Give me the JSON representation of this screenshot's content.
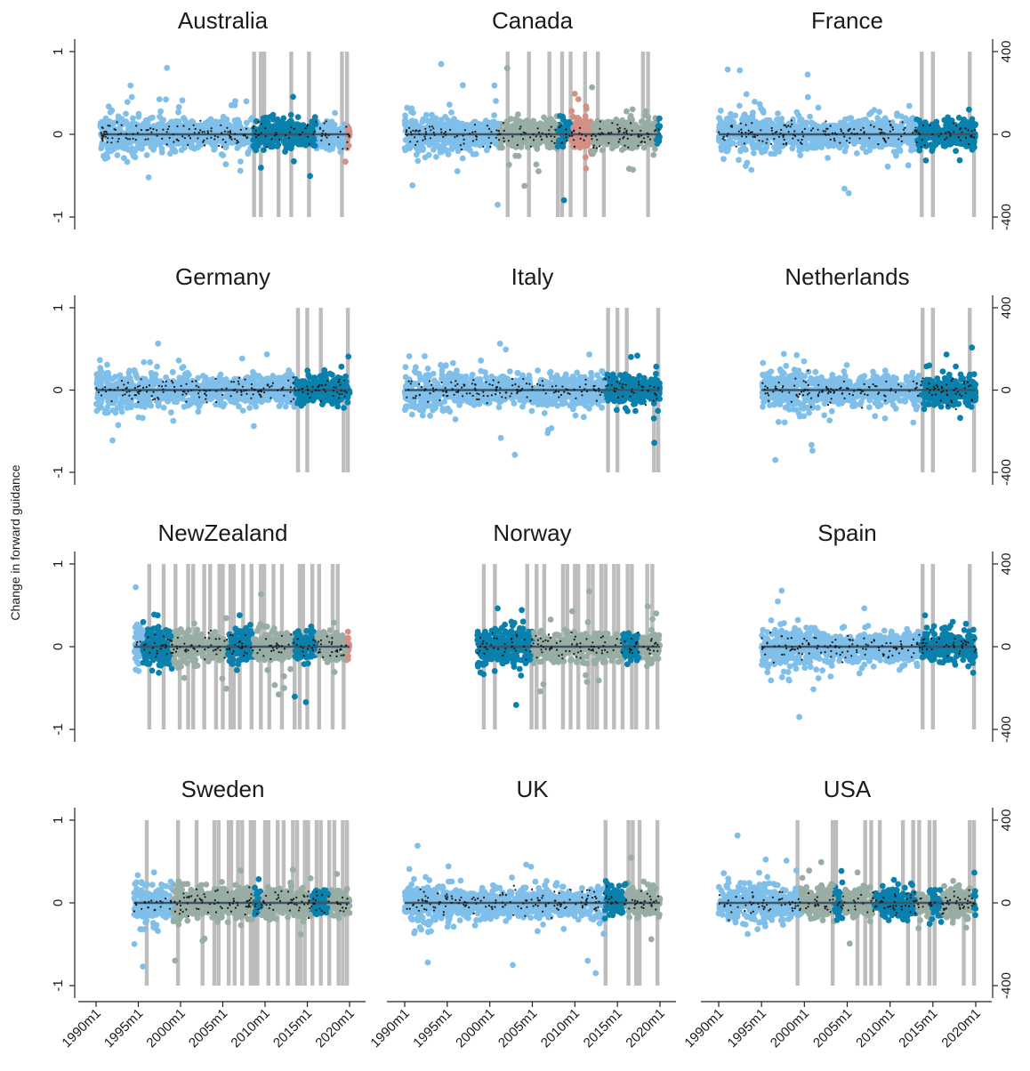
{
  "figure": {
    "ylabel": "Change in forward guidance",
    "left_ticks": [
      "1",
      "0",
      "-1"
    ],
    "right_ticks": [
      "400",
      "0",
      "-400"
    ],
    "x_ticks": [
      "1990m1",
      "1995m1",
      "2000m1",
      "2005m1",
      "2010m1",
      "2015m1",
      "2020m1"
    ]
  },
  "colors": {
    "light_blue": "#7fbfea",
    "dark_blue": "#0a81ad",
    "gray_green": "#98aea4",
    "salmon": "#d48f86",
    "shock_bars": "#bdbdbd",
    "zero_line": "#3d5564",
    "marker": "#1a1a1a"
  },
  "chart_data": [
    {
      "type": "scatter",
      "title": "Australia",
      "panel_row": 0,
      "panel_col": 0,
      "sample": [
        1990.5,
        2020.0
      ],
      "regimes": [
        {
          "from": 2008.5,
          "to": 2016.0,
          "color": "dark_blue"
        },
        {
          "from": 2019.5,
          "to": 2020.0,
          "color": "salmon"
        }
      ],
      "shock_dates": [
        2008.7,
        2009.1,
        2009.5,
        2009.9,
        2011.6,
        2013.1,
        2015.2,
        2015.8,
        2019.1,
        2019.7
      ],
      "ylim": [
        -1,
        1
      ],
      "right_ylim": [
        -400,
        400
      ]
    },
    {
      "type": "scatter",
      "title": "Canada",
      "panel_row": 0,
      "panel_col": 1,
      "sample": [
        1990.0,
        2020.0
      ],
      "regimes": [
        {
          "from": 2001.0,
          "to": 2008.0,
          "color": "gray_green"
        },
        {
          "from": 2008.0,
          "to": 2009.5,
          "color": "dark_blue"
        },
        {
          "from": 2009.5,
          "to": 2012.0,
          "color": "salmon"
        },
        {
          "from": 2012.0,
          "to": 2019.5,
          "color": "gray_green"
        },
        {
          "from": 2019.5,
          "to": 2020.0,
          "color": "dark_blue"
        }
      ],
      "shock_dates": [
        2002.1,
        2002.9,
        2004.6,
        2007.0,
        2008.0,
        2008.5,
        2009.5,
        2010.3,
        2011.2,
        2012.7,
        2013.4,
        2018.0,
        2018.6,
        2019.3
      ],
      "ylim": [
        -1,
        1
      ],
      "right_ylim": [
        -400,
        400
      ]
    },
    {
      "type": "scatter",
      "title": "France",
      "panel_row": 0,
      "panel_col": 2,
      "sample": [
        1990.0,
        2020.0
      ],
      "regimes": [
        {
          "from": 2013.0,
          "to": 2020.0,
          "color": "dark_blue"
        }
      ],
      "shock_dates": [
        2013.7,
        2014.4,
        2015.0,
        2019.3,
        2019.8
      ],
      "ylim": [
        -1,
        1
      ],
      "right_ylim": [
        -400,
        400
      ]
    },
    {
      "type": "scatter",
      "title": "Germany",
      "panel_row": 1,
      "panel_col": 0,
      "sample": [
        1990.0,
        2020.0
      ],
      "regimes": [
        {
          "from": 2013.5,
          "to": 2020.0,
          "color": "dark_blue"
        }
      ],
      "shock_dates": [
        2013.9,
        2014.5,
        2015.0,
        2016.6,
        2019.3,
        2019.8
      ],
      "ylim": [
        -1,
        1
      ],
      "right_ylim": [
        -400,
        400
      ]
    },
    {
      "type": "scatter",
      "title": "Italy",
      "panel_row": 1,
      "panel_col": 1,
      "sample": [
        1990.0,
        2020.0
      ],
      "regimes": [
        {
          "from": 2013.5,
          "to": 2020.0,
          "color": "dark_blue"
        }
      ],
      "shock_dates": [
        2013.9,
        2014.4,
        2015.0,
        2016.1,
        2019.3,
        2019.8
      ],
      "ylim": [
        -1,
        1
      ],
      "right_ylim": [
        -400,
        400
      ]
    },
    {
      "type": "scatter",
      "title": "Netherlands",
      "panel_row": 1,
      "panel_col": 2,
      "sample": [
        1995.0,
        2020.0
      ],
      "regimes": [
        {
          "from": 2013.5,
          "to": 2020.0,
          "color": "dark_blue"
        }
      ],
      "shock_dates": [
        2013.8,
        2014.4,
        2015.0,
        2019.3,
        2019.8
      ],
      "ylim": [
        -1,
        1
      ],
      "right_ylim": [
        -400,
        400
      ]
    },
    {
      "type": "scatter",
      "title": "NewZealand",
      "panel_row": 2,
      "panel_col": 0,
      "sample": [
        1994.5,
        2020.0
      ],
      "regimes": [
        {
          "from": 1995.5,
          "to": 1999.0,
          "color": "dark_blue"
        },
        {
          "from": 1999.0,
          "to": 2005.5,
          "color": "gray_green"
        },
        {
          "from": 2005.5,
          "to": 2008.5,
          "color": "dark_blue"
        },
        {
          "from": 2008.5,
          "to": 2013.5,
          "color": "gray_green"
        },
        {
          "from": 2013.5,
          "to": 2016.0,
          "color": "dark_blue"
        },
        {
          "from": 2016.0,
          "to": 2019.5,
          "color": "gray_green"
        },
        {
          "from": 2019.5,
          "to": 2020.0,
          "color": "salmon"
        }
      ],
      "shock_dates": [
        1996.3,
        1996.9,
        1998.0,
        1999.4,
        1999.9,
        2000.9,
        2001.5,
        2002.2,
        2002.8,
        2003.5,
        2004.2,
        2004.6,
        2005.0,
        2005.4,
        2005.9,
        2006.3,
        2007.0,
        2007.4,
        2008.4,
        2009.1,
        2009.5,
        2009.9,
        2010.5,
        2011.0,
        2012.0,
        2013.5,
        2014.1,
        2014.5,
        2015.0,
        2015.6,
        2016.4,
        2017.2,
        2018.0,
        2018.6,
        2019.3
      ],
      "ylim": [
        -1,
        1
      ],
      "right_ylim": [
        -400,
        400
      ]
    },
    {
      "type": "scatter",
      "title": "Norway",
      "panel_row": 2,
      "panel_col": 1,
      "sample": [
        1998.5,
        2020.0
      ],
      "regimes": [
        {
          "from": 1998.5,
          "to": 2001.0,
          "color": "dark_blue"
        },
        {
          "from": 2001.0,
          "to": 2005.0,
          "color": "dark_blue"
        },
        {
          "from": 2005.0,
          "to": 2015.5,
          "color": "gray_green"
        },
        {
          "from": 2015.5,
          "to": 2017.5,
          "color": "dark_blue"
        },
        {
          "from": 2017.5,
          "to": 2020.0,
          "color": "gray_green"
        }
      ],
      "shock_dates": [
        1999.3,
        1999.9,
        2000.6,
        2004.4,
        2004.9,
        2005.5,
        2006.4,
        2008.0,
        2008.6,
        2009.1,
        2009.5,
        2010.0,
        2010.4,
        2011.0,
        2011.6,
        2012.1,
        2012.6,
        2013.1,
        2013.6,
        2014.1,
        2014.6,
        2015.1,
        2015.6,
        2016.2,
        2016.7,
        2017.2,
        2018.5,
        2019.1,
        2019.7
      ],
      "ylim": [
        -1,
        1
      ],
      "right_ylim": [
        -400,
        400
      ]
    },
    {
      "type": "scatter",
      "title": "Spain",
      "panel_row": 2,
      "panel_col": 2,
      "sample": [
        1995.0,
        2020.0
      ],
      "regimes": [
        {
          "from": 2013.5,
          "to": 2020.0,
          "color": "dark_blue"
        }
      ],
      "shock_dates": [
        2013.8,
        2014.4,
        2015.0,
        2019.3,
        2019.8
      ],
      "ylim": [
        -1,
        1
      ],
      "right_ylim": [
        -400,
        400
      ]
    },
    {
      "type": "scatter",
      "title": "Sweden",
      "panel_row": 3,
      "panel_col": 0,
      "sample": [
        1994.5,
        2020.0
      ],
      "regimes": [
        {
          "from": 1999.0,
          "to": 2008.5,
          "color": "gray_green"
        },
        {
          "from": 2008.5,
          "to": 2009.5,
          "color": "dark_blue"
        },
        {
          "from": 2009.5,
          "to": 2015.5,
          "color": "gray_green"
        },
        {
          "from": 2015.5,
          "to": 2017.5,
          "color": "dark_blue"
        },
        {
          "from": 2017.5,
          "to": 2020.0,
          "color": "gray_green"
        }
      ],
      "shock_dates": [
        1996.0,
        1998.9,
        1999.7,
        2001.9,
        2002.6,
        2004.0,
        2004.5,
        2005.2,
        2005.7,
        2006.0,
        2006.4,
        2006.8,
        2007.3,
        2007.7,
        2008.3,
        2008.7,
        2009.1,
        2010.0,
        2010.4,
        2011.0,
        2011.5,
        2012.2,
        2012.7,
        2013.3,
        2013.8,
        2014.2,
        2014.7,
        2015.1,
        2015.6,
        2016.1,
        2016.6,
        2017.1,
        2017.6,
        2018.2,
        2018.7,
        2019.2,
        2019.7
      ],
      "ylim": [
        -1,
        1
      ],
      "right_ylim": [
        -400,
        400
      ]
    },
    {
      "type": "scatter",
      "title": "UK",
      "panel_row": 3,
      "panel_col": 1,
      "sample": [
        1990.0,
        2020.0
      ],
      "regimes": [
        {
          "from": 2013.5,
          "to": 2016.0,
          "color": "dark_blue"
        },
        {
          "from": 2016.0,
          "to": 2020.0,
          "color": "gray_green"
        }
      ],
      "shock_dates": [
        2013.6,
        2014.4,
        2016.3,
        2016.8,
        2017.2,
        2017.6,
        2019.7
      ],
      "ylim": [
        -1,
        1
      ],
      "right_ylim": [
        -400,
        400
      ]
    },
    {
      "type": "scatter",
      "title": "USA",
      "panel_row": 3,
      "panel_col": 2,
      "sample": [
        1990.0,
        2020.0
      ],
      "regimes": [
        {
          "from": 1999.5,
          "to": 2003.5,
          "color": "gray_green"
        },
        {
          "from": 2003.5,
          "to": 2004.5,
          "color": "dark_blue"
        },
        {
          "from": 2004.5,
          "to": 2008.0,
          "color": "gray_green"
        },
        {
          "from": 2008.0,
          "to": 2013.0,
          "color": "dark_blue"
        },
        {
          "from": 2013.0,
          "to": 2014.5,
          "color": "gray_green"
        },
        {
          "from": 2014.5,
          "to": 2016.0,
          "color": "dark_blue"
        },
        {
          "from": 2016.0,
          "to": 2019.5,
          "color": "gray_green"
        },
        {
          "from": 2019.5,
          "to": 2020.0,
          "color": "dark_blue"
        }
      ],
      "shock_dates": [
        1999.2,
        1999.7,
        2003.3,
        2003.7,
        2006.2,
        2007.1,
        2007.8,
        2008.3,
        2008.8,
        2011.5,
        2012.1,
        2012.7,
        2013.4,
        2014.1,
        2014.6,
        2015.2,
        2018.6,
        2019.3,
        2019.8
      ],
      "ylim": [
        -1,
        1
      ],
      "right_ylim": [
        -400,
        400
      ]
    }
  ]
}
